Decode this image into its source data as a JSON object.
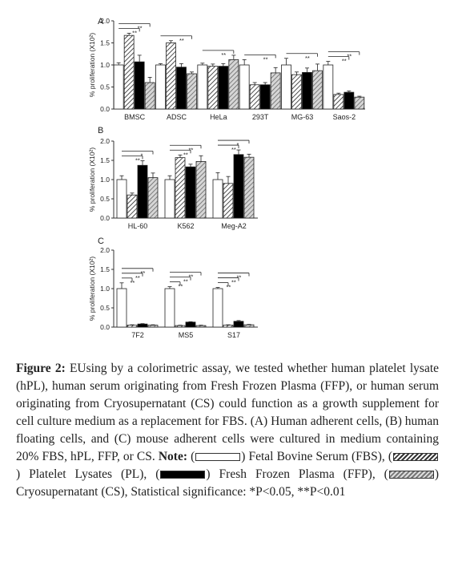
{
  "chart_data": [
    {
      "type": "bar",
      "panel": "A",
      "ylabel": "% proliferation (X10²)",
      "ylim": [
        0,
        2.0
      ],
      "yticks": [
        "0.0",
        "0.5",
        "1.0",
        "1.5",
        "2.0"
      ],
      "categories": [
        "BMSC",
        "ADSC",
        "HeLa",
        "293T",
        "MG-63",
        "Saos-2"
      ],
      "series": [
        {
          "values": [
            1.0,
            1.0,
            1.0,
            1.0,
            1.0,
            1.0
          ],
          "errors": [
            0.05,
            0.03,
            0.04,
            0.12,
            0.15,
            0.08
          ]
        },
        {
          "values": [
            1.67,
            1.5,
            0.97,
            0.55,
            0.78,
            0.33
          ],
          "errors": [
            0.05,
            0.05,
            0.05,
            0.05,
            0.06,
            0.03
          ]
        },
        {
          "values": [
            1.07,
            0.95,
            0.97,
            0.55,
            0.83,
            0.38
          ],
          "errors": [
            0.15,
            0.08,
            0.06,
            0.05,
            0.1,
            0.03
          ]
        },
        {
          "values": [
            0.6,
            0.8,
            1.12,
            0.82,
            0.87,
            0.27
          ],
          "errors": [
            0.12,
            0.04,
            0.1,
            0.12,
            0.15,
            0.02
          ]
        }
      ],
      "annotations": [
        "**",
        "**",
        "**",
        "**",
        "**",
        "**",
        "**",
        "**",
        "**"
      ]
    },
    {
      "type": "bar",
      "panel": "B",
      "ylabel": "% proliferation (X10²)",
      "ylim": [
        0,
        2.0
      ],
      "yticks": [
        "0.0",
        "0.5",
        "1.0",
        "1.5",
        "2.0"
      ],
      "categories": [
        "HL-60",
        "K562",
        "Meg-A2"
      ],
      "series": [
        {
          "values": [
            1.0,
            1.0,
            1.0
          ],
          "errors": [
            0.1,
            0.1,
            0.18
          ]
        },
        {
          "values": [
            0.6,
            1.57,
            0.9
          ],
          "errors": [
            0.05,
            0.07,
            0.18
          ]
        },
        {
          "values": [
            1.37,
            1.33,
            1.65
          ],
          "errors": [
            0.12,
            0.07,
            0.12
          ]
        },
        {
          "values": [
            1.05,
            1.47,
            1.58
          ],
          "errors": [
            0.12,
            0.15,
            0.08
          ]
        }
      ],
      "annotations": [
        "**",
        "*",
        "**",
        "**",
        "**",
        "*"
      ]
    },
    {
      "type": "bar",
      "panel": "C",
      "ylabel": "% proliferation (X10²)",
      "ylim": [
        0,
        2.0
      ],
      "yticks": [
        "0.0",
        "0.5",
        "1.0",
        "1.5",
        "2.0"
      ],
      "categories": [
        "7F2",
        "MS5",
        "S17"
      ],
      "series": [
        {
          "values": [
            1.0,
            1.0,
            1.0
          ],
          "errors": [
            0.15,
            0.05,
            0.03
          ]
        },
        {
          "values": [
            0.05,
            0.04,
            0.05
          ],
          "errors": [
            0.01,
            0.01,
            0.01
          ]
        },
        {
          "values": [
            0.08,
            0.13,
            0.15
          ],
          "errors": [
            0.01,
            0.01,
            0.02
          ]
        },
        {
          "values": [
            0.05,
            0.04,
            0.06
          ],
          "errors": [
            0.01,
            0.01,
            0.01
          ]
        }
      ],
      "annotations": [
        "**",
        "**",
        "**",
        "**",
        "**",
        "**",
        "**",
        "**",
        "**"
      ]
    }
  ],
  "caption": {
    "figure_label": "Figure",
    "figure_number": "2:",
    "text": "EUsing by a colorimetric assay, we tested whether human platelet lysate (hPL), human serum originating from Fresh Frozen Plasma (FFP), or human serum originating from Cryosupernatant (CS) could function as a growth supplement for cell culture medium as a replacement for FBS. (A) Human adherent cells, (B) human floating cells, and (C) mouse adherent cells were cultured in medium containing 20% FBS, hPL, FFP, or CS.",
    "note_label": "Note:",
    "legend": [
      {
        "label": "Fetal Bovine Serum (FBS),",
        "swatch": "white"
      },
      {
        "label": "Platelet Lysates (PL),",
        "swatch": "hatched"
      },
      {
        "label": "Fresh Frozen Plasma (FFP),",
        "swatch": "black"
      },
      {
        "label": "Cryosupernatant (CS),",
        "swatch": "grey-hatched"
      }
    ],
    "significance": "Statistical significance: *P<0.05, **P<0.01"
  }
}
